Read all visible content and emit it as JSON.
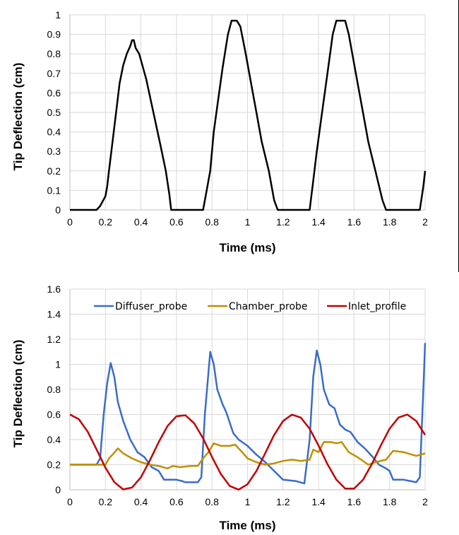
{
  "chart_data": [
    {
      "type": "line",
      "title": "",
      "xlabel": "Time (ms)",
      "ylabel": "Tip Deflection (cm)",
      "xlim": [
        0,
        2
      ],
      "ylim": [
        0,
        1
      ],
      "xticks": [
        "0",
        "0.2",
        "0.4",
        "0.6",
        "0.8",
        "1",
        "1.2",
        "1.4",
        "1.6",
        "1.8",
        "2"
      ],
      "yticks": [
        "0",
        "0.1",
        "0.2",
        "0.3",
        "0.4",
        "0.5",
        "0.6",
        "0.7",
        "0.8",
        "0.9",
        "1"
      ],
      "grid": true,
      "legend": "none",
      "series": [
        {
          "color": "#000000",
          "x": [
            0,
            0.15,
            0.17,
            0.2,
            0.21,
            0.22,
            0.24,
            0.26,
            0.28,
            0.3,
            0.32,
            0.34,
            0.35,
            0.36,
            0.37,
            0.39,
            0.43,
            0.47,
            0.51,
            0.54,
            0.56,
            0.57,
            0.75,
            0.77,
            0.79,
            0.81,
            0.84,
            0.86,
            0.89,
            0.91,
            0.94,
            0.96,
            0.99,
            1.02,
            1.05,
            1.08,
            1.12,
            1.15,
            1.17,
            1.35,
            1.37,
            1.39,
            1.42,
            1.45,
            1.48,
            1.5,
            1.55,
            1.57,
            1.59,
            1.62,
            1.65,
            1.68,
            1.72,
            1.76,
            1.78,
            1.97,
            1.99,
            2.0
          ],
          "y": [
            0,
            0,
            0.02,
            0.07,
            0.12,
            0.2,
            0.35,
            0.5,
            0.65,
            0.74,
            0.8,
            0.84,
            0.87,
            0.87,
            0.83,
            0.8,
            0.67,
            0.5,
            0.33,
            0.2,
            0.08,
            0,
            0,
            0.1,
            0.2,
            0.4,
            0.6,
            0.73,
            0.9,
            0.97,
            0.97,
            0.94,
            0.8,
            0.65,
            0.5,
            0.35,
            0.2,
            0.05,
            0,
            0,
            0.15,
            0.3,
            0.5,
            0.7,
            0.9,
            0.97,
            0.97,
            0.9,
            0.8,
            0.65,
            0.5,
            0.35,
            0.2,
            0.05,
            0,
            0,
            0.12,
            0.2
          ]
        }
      ]
    },
    {
      "type": "line",
      "title": "",
      "xlabel": "Time (ms)",
      "ylabel": "Tip Deflection (cm)",
      "xlim": [
        0,
        2
      ],
      "ylim": [
        0,
        1.6
      ],
      "xticks": [
        "0",
        "0.2",
        "0.4",
        "0.6",
        "0.8",
        "1",
        "1.2",
        "1.4",
        "1.6",
        "1.8",
        "2"
      ],
      "yticks": [
        "0",
        "0.2",
        "0.4",
        "0.6",
        "0.8",
        "1",
        "1.2",
        "1.4",
        "1.6"
      ],
      "grid": true,
      "legend": "top",
      "series": [
        {
          "name": "Diffuser_probe",
          "color": "#3a6cc8",
          "x": [
            0,
            0.15,
            0.17,
            0.19,
            0.21,
            0.23,
            0.25,
            0.27,
            0.3,
            0.34,
            0.38,
            0.42,
            0.46,
            0.5,
            0.53,
            0.6,
            0.63,
            0.65,
            0.68,
            0.72,
            0.74,
            0.76,
            0.79,
            0.81,
            0.83,
            0.86,
            0.88,
            0.92,
            0.95,
            1.0,
            1.05,
            1.1,
            1.15,
            1.2,
            1.27,
            1.32,
            1.35,
            1.37,
            1.39,
            1.41,
            1.43,
            1.46,
            1.49,
            1.52,
            1.55,
            1.58,
            1.62,
            1.66,
            1.7,
            1.74,
            1.78,
            1.8,
            1.82,
            1.88,
            1.95,
            1.97,
            1.99,
            2.0
          ],
          "y": [
            0.2,
            0.2,
            0.25,
            0.6,
            0.85,
            1.01,
            0.9,
            0.7,
            0.55,
            0.4,
            0.3,
            0.26,
            0.18,
            0.15,
            0.08,
            0.08,
            0.07,
            0.06,
            0.06,
            0.06,
            0.1,
            0.6,
            1.1,
            1.0,
            0.8,
            0.68,
            0.62,
            0.45,
            0.4,
            0.35,
            0.28,
            0.22,
            0.15,
            0.08,
            0.07,
            0.05,
            0.4,
            0.9,
            1.11,
            1.0,
            0.8,
            0.68,
            0.65,
            0.52,
            0.48,
            0.46,
            0.38,
            0.33,
            0.27,
            0.2,
            0.17,
            0.15,
            0.08,
            0.08,
            0.06,
            0.1,
            0.8,
            1.17
          ]
        },
        {
          "name": "Chamber_probe",
          "color": "#bf8f00",
          "x": [
            0,
            0.2,
            0.22,
            0.24,
            0.27,
            0.3,
            0.35,
            0.4,
            0.45,
            0.5,
            0.55,
            0.58,
            0.62,
            0.68,
            0.72,
            0.75,
            0.78,
            0.81,
            0.85,
            0.9,
            0.93,
            0.97,
            1.0,
            1.05,
            1.1,
            1.15,
            1.2,
            1.25,
            1.3,
            1.35,
            1.37,
            1.4,
            1.43,
            1.47,
            1.5,
            1.53,
            1.57,
            1.62,
            1.68,
            1.72,
            1.78,
            1.82,
            1.88,
            1.95,
            2.0
          ],
          "y": [
            0.2,
            0.2,
            0.25,
            0.28,
            0.33,
            0.29,
            0.25,
            0.22,
            0.2,
            0.19,
            0.17,
            0.19,
            0.18,
            0.19,
            0.19,
            0.25,
            0.3,
            0.37,
            0.35,
            0.35,
            0.36,
            0.3,
            0.25,
            0.22,
            0.2,
            0.21,
            0.23,
            0.24,
            0.23,
            0.24,
            0.32,
            0.3,
            0.38,
            0.38,
            0.37,
            0.38,
            0.3,
            0.26,
            0.2,
            0.22,
            0.24,
            0.31,
            0.3,
            0.27,
            0.29
          ]
        },
        {
          "name": "Inlet_profile",
          "color": "#c00000",
          "x": [
            0,
            0.05,
            0.1,
            0.15,
            0.2,
            0.25,
            0.3,
            0.35,
            0.4,
            0.45,
            0.5,
            0.55,
            0.6,
            0.65,
            0.7,
            0.75,
            0.8,
            0.85,
            0.9,
            0.95,
            1.0,
            1.05,
            1.1,
            1.15,
            1.2,
            1.25,
            1.3,
            1.35,
            1.4,
            1.45,
            1.5,
            1.55,
            1.6,
            1.65,
            1.7,
            1.75,
            1.8,
            1.85,
            1.9,
            1.95,
            2.0
          ],
          "y": [
            0.6,
            0.563,
            0.463,
            0.322,
            0.176,
            0.061,
            0.003,
            0.018,
            0.1,
            0.233,
            0.381,
            0.509,
            0.586,
            0.594,
            0.53,
            0.41,
            0.262,
            0.125,
            0.03,
            0.001,
            0.044,
            0.15,
            0.293,
            0.437,
            0.548,
            0.599,
            0.576,
            0.487,
            0.352,
            0.204,
            0.081,
            0.01,
            0.009,
            0.079,
            0.204,
            0.351,
            0.487,
            0.576,
            0.6,
            0.548,
            0.437
          ]
        }
      ]
    }
  ]
}
